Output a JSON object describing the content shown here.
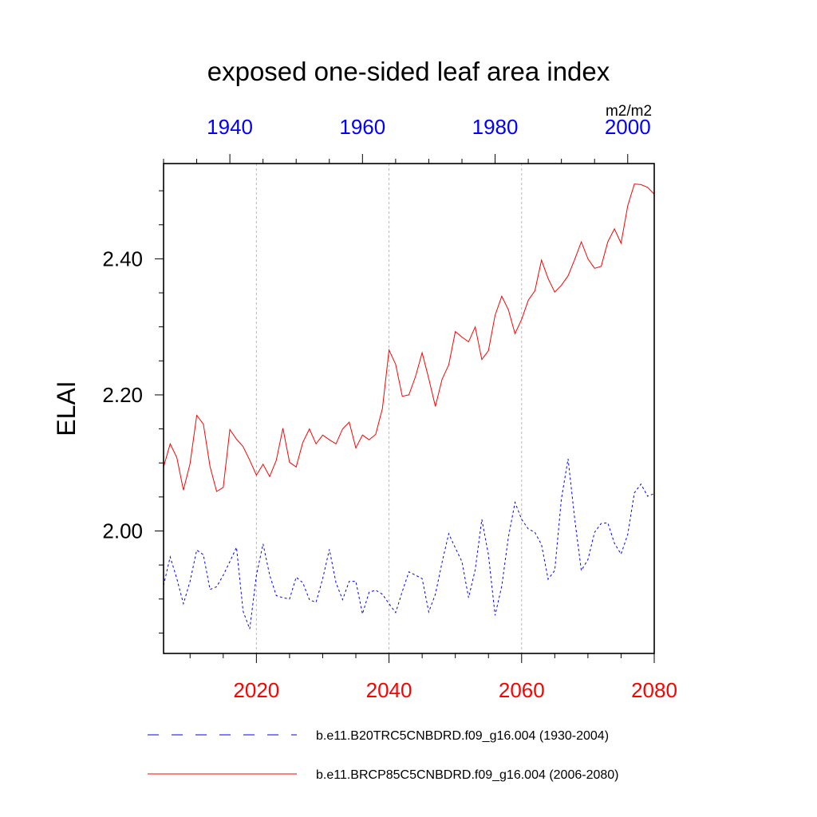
{
  "chart_data": {
    "type": "line",
    "title": "exposed one-sided leaf area index",
    "units": "m2/m2",
    "ylabel": "ELAI",
    "ylim": [
      1.82,
      2.54
    ],
    "yticks": [
      "2.00",
      "2.20",
      "2.40"
    ],
    "ytick_values": [
      2.0,
      2.2,
      2.4
    ],
    "grid": "vertical-dotted",
    "top_axis": {
      "color": "#0000ff",
      "range": [
        1930,
        2004
      ],
      "tick_values": [
        1940,
        1960,
        1980,
        2000
      ],
      "tick_labels": [
        "1940",
        "1960",
        "1980",
        "2000"
      ]
    },
    "bottom_axis": {
      "color": "#ff0000",
      "range": [
        2006,
        2080
      ],
      "tick_values": [
        2020,
        2040,
        2060,
        2080
      ],
      "tick_labels": [
        "2020",
        "2040",
        "2060",
        "2080"
      ]
    },
    "legend_placement": "bottom",
    "series": [
      {
        "name": "b.e11.B20TRC5CNBDRD.f09_g16.004 (1930-2004)",
        "color": "#0000ff",
        "dash": "dashed",
        "axis": "top",
        "x_start": 1930,
        "values": [
          1.92,
          1.962,
          1.93,
          1.893,
          1.926,
          1.972,
          1.965,
          1.914,
          1.918,
          1.935,
          1.955,
          1.976,
          1.882,
          1.856,
          1.935,
          1.981,
          1.935,
          1.905,
          1.902,
          1.9,
          1.932,
          1.924,
          1.899,
          1.895,
          1.93,
          1.973,
          1.924,
          1.899,
          1.926,
          1.926,
          1.878,
          1.91,
          1.913,
          1.907,
          1.893,
          1.88,
          1.911,
          1.94,
          1.935,
          1.93,
          1.881,
          1.907,
          1.954,
          1.996,
          1.975,
          1.955,
          1.902,
          1.943,
          2.017,
          1.965,
          1.876,
          1.919,
          1.991,
          2.042,
          2.017,
          2.003,
          1.998,
          1.98,
          1.929,
          1.942,
          2.047,
          2.106,
          2.018,
          1.942,
          1.958,
          1.998,
          2.011,
          2.012,
          1.982,
          1.966,
          1.995,
          2.056,
          2.069,
          2.051,
          2.055
        ]
      },
      {
        "name": "b.e11.BRCP85C5CNBDRD.f09_g16.004 (2006-2080)",
        "color": "#ff0000",
        "dash": "solid",
        "axis": "bottom",
        "x_start": 2006,
        "values": [
          2.094,
          2.128,
          2.108,
          2.06,
          2.099,
          2.17,
          2.157,
          2.095,
          2.058,
          2.064,
          2.149,
          2.135,
          2.124,
          2.104,
          2.082,
          2.098,
          2.08,
          2.104,
          2.151,
          2.101,
          2.094,
          2.13,
          2.15,
          2.128,
          2.141,
          2.134,
          2.128,
          2.15,
          2.16,
          2.122,
          2.141,
          2.134,
          2.142,
          2.18,
          2.266,
          2.245,
          2.198,
          2.2,
          2.227,
          2.262,
          2.224,
          2.183,
          2.223,
          2.244,
          2.293,
          2.285,
          2.278,
          2.3,
          2.252,
          2.265,
          2.317,
          2.345,
          2.325,
          2.29,
          2.311,
          2.339,
          2.353,
          2.398,
          2.371,
          2.351,
          2.361,
          2.375,
          2.399,
          2.425,
          2.4,
          2.386,
          2.389,
          2.425,
          2.444,
          2.423,
          2.478,
          2.51,
          2.509,
          2.505,
          2.495
        ]
      }
    ]
  }
}
